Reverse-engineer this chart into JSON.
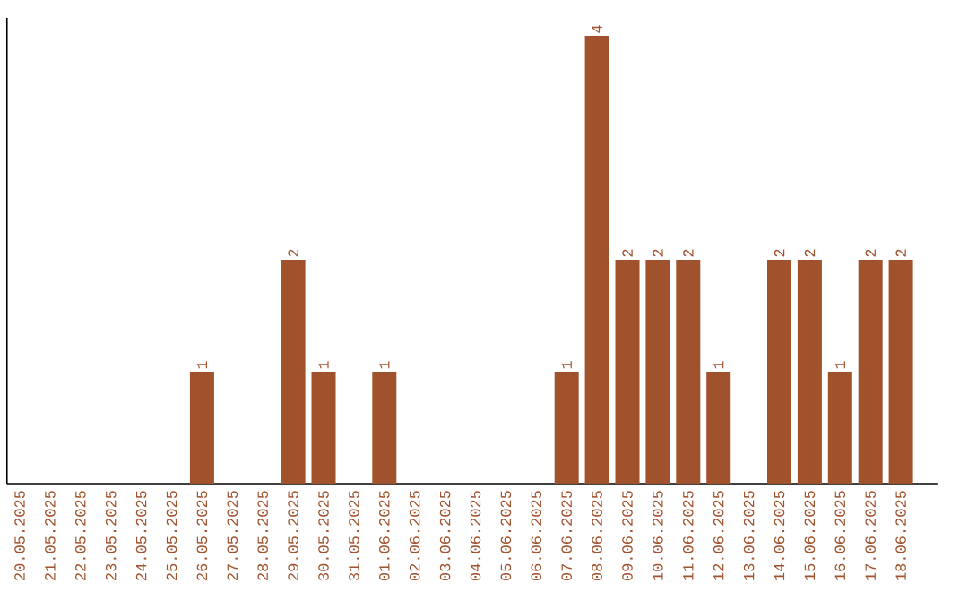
{
  "chart_data": {
    "type": "bar",
    "categories": [
      "20.05.2025",
      "21.05.2025",
      "22.05.2025",
      "23.05.2025",
      "24.05.2025",
      "25.05.2025",
      "26.05.2025",
      "27.05.2025",
      "28.05.2025",
      "29.05.2025",
      "30.05.2025",
      "31.05.2025",
      "01.06.2025",
      "02.06.2025",
      "03.06.2025",
      "04.06.2025",
      "05.06.2025",
      "06.06.2025",
      "07.06.2025",
      "08.06.2025",
      "09.06.2025",
      "10.06.2025",
      "11.06.2025",
      "12.06.2025",
      "13.06.2025",
      "14.06.2025",
      "15.06.2025",
      "16.06.2025",
      "17.06.2025",
      "18.06.2025"
    ],
    "values": [
      0,
      0,
      0,
      0,
      0,
      0,
      1,
      0,
      0,
      2,
      1,
      0,
      1,
      0,
      0,
      0,
      0,
      0,
      1,
      4,
      2,
      2,
      2,
      1,
      0,
      2,
      2,
      1,
      2,
      2
    ],
    "value_labels": [
      null,
      null,
      null,
      null,
      null,
      null,
      "1",
      null,
      null,
      "2",
      "1",
      null,
      "1",
      null,
      null,
      null,
      null,
      null,
      "1",
      "4",
      "2",
      "2",
      "2",
      "1",
      null,
      "2",
      "2",
      "1",
      "2",
      "2"
    ],
    "color": "#a0522d",
    "tick_labels": "x"
  }
}
